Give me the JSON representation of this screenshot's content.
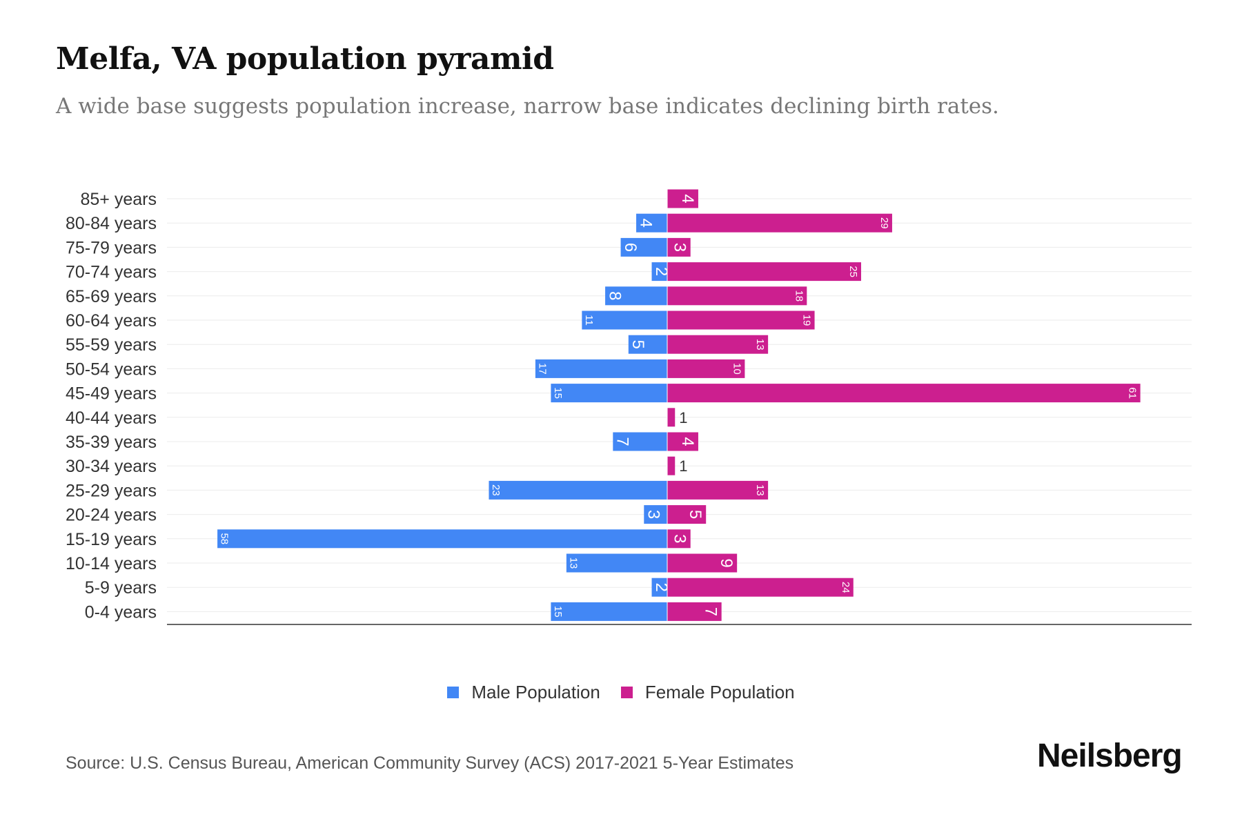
{
  "header": {
    "title": "Melfa, VA population pyramid",
    "subtitle": "A wide base suggests population increase, narrow base indicates declining birth rates."
  },
  "chart_data": {
    "type": "bar",
    "orientation": "horizontal-pyramid",
    "categories": [
      "85+ years",
      "80-84 years",
      "75-79 years",
      "70-74 years",
      "65-69 years",
      "60-64 years",
      "55-59 years",
      "50-54 years",
      "45-49 years",
      "40-44 years",
      "35-39 years",
      "30-34 years",
      "25-29 years",
      "20-24 years",
      "15-19 years",
      "10-14 years",
      "5-9 years",
      "0-4 years"
    ],
    "series": [
      {
        "name": "Male Population",
        "color": "#4287f5",
        "values": [
          0,
          4,
          6,
          2,
          8,
          11,
          5,
          17,
          15,
          0,
          7,
          0,
          23,
          3,
          58,
          13,
          2,
          15
        ]
      },
      {
        "name": "Female Population",
        "color": "#cc1f8f",
        "values": [
          4,
          29,
          3,
          25,
          18,
          19,
          13,
          10,
          61,
          1,
          4,
          1,
          13,
          5,
          3,
          9,
          24,
          7
        ]
      }
    ],
    "legend_position": "bottom-center",
    "grid": true
  },
  "legend": {
    "male": "Male Population",
    "female": "Female Population"
  },
  "footer": {
    "source": "Source: U.S. Census Bureau, American Community Survey (ACS) 2017-2021 5-Year Estimates",
    "logo": "Neilsberg"
  }
}
